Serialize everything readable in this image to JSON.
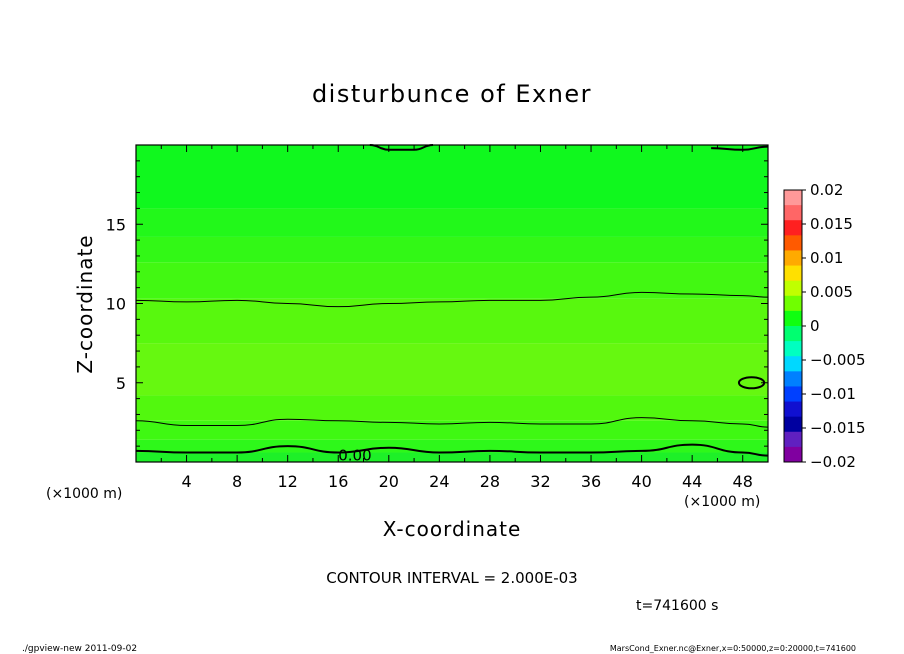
{
  "chart_data": {
    "type": "heatmap",
    "title": "disturbunce of Exner",
    "xlabel": "X-coordinate",
    "ylabel": "Z-coordinate",
    "x_unit": "(×1000 m)",
    "y_unit": "(×1000 m)",
    "xlim": [
      0,
      50
    ],
    "ylim": [
      0,
      20
    ],
    "x_ticks": [
      4,
      8,
      12,
      16,
      20,
      24,
      28,
      32,
      36,
      40,
      44,
      48
    ],
    "y_ticks": [
      5,
      10,
      15
    ],
    "contour_interval_text": "CONTOUR INTERVAL = 2.000E-03",
    "time_text": "t=741600 s",
    "contour_label": "0.00",
    "bands": [
      {
        "z0": 0.0,
        "z1": 0.6,
        "color": "#1ef028"
      },
      {
        "z0": 0.6,
        "z1": 1.4,
        "color": "#2ef81a"
      },
      {
        "z0": 1.4,
        "z1": 2.6,
        "color": "#3ff812"
      },
      {
        "z0": 2.6,
        "z1": 4.2,
        "color": "#52f80e"
      },
      {
        "z0": 4.2,
        "z1": 7.5,
        "color": "#66f810"
      },
      {
        "z0": 7.5,
        "z1": 10.3,
        "color": "#58f80e"
      },
      {
        "z0": 10.3,
        "z1": 12.6,
        "color": "#42f812"
      },
      {
        "z0": 12.6,
        "z1": 14.2,
        "color": "#32f816"
      },
      {
        "z0": 14.2,
        "z1": 16.0,
        "color": "#22f81a"
      },
      {
        "z0": 16.0,
        "z1": 20.0,
        "color": "#10f81e"
      }
    ],
    "contours": [
      {
        "name": "0.00",
        "x": [
          0,
          4,
          8,
          12,
          16,
          20,
          24,
          28,
          32,
          36,
          40,
          44,
          48,
          50
        ],
        "z": [
          0.7,
          0.6,
          0.6,
          1.0,
          0.6,
          0.9,
          0.6,
          0.7,
          0.6,
          0.6,
          0.7,
          1.1,
          0.6,
          0.4
        ]
      },
      {
        "name": "c2",
        "x": [
          0,
          4,
          8,
          12,
          16,
          20,
          24,
          28,
          32,
          36,
          40,
          44,
          48,
          50
        ],
        "z": [
          2.6,
          2.3,
          2.3,
          2.7,
          2.6,
          2.5,
          2.4,
          2.5,
          2.4,
          2.4,
          2.8,
          2.6,
          2.4,
          2.2
        ]
      },
      {
        "name": "c3",
        "x": [
          0,
          4,
          8,
          12,
          16,
          20,
          24,
          28,
          32,
          36,
          40,
          44,
          48,
          50
        ],
        "z": [
          10.2,
          10.1,
          10.2,
          10.0,
          9.8,
          10.0,
          10.1,
          10.2,
          10.2,
          10.4,
          10.7,
          10.6,
          10.5,
          10.4
        ]
      }
    ],
    "top_contour": {
      "x": [
        18.5,
        20,
        22,
        23.5
      ],
      "z": [
        20,
        19.7,
        19.7,
        20
      ]
    },
    "top_contour2": {
      "x": [
        45.5,
        48,
        50
      ],
      "z": [
        19.8,
        19.7,
        19.9
      ]
    },
    "loop": {
      "x": 48.7,
      "z": 5.0,
      "rx": 1.0,
      "rz": 0.35
    },
    "colorbar": {
      "ticks": [
        "0.02",
        "0.015",
        "0.01",
        "0.005",
        "0",
        "−0.005",
        "−0.01",
        "−0.015",
        "−0.02"
      ],
      "colors": [
        "#ff9999",
        "#ff6666",
        "#ff2020",
        "#ff5a00",
        "#ffaa00",
        "#ffe000",
        "#c0ff00",
        "#70ff00",
        "#10ff10",
        "#00ff70",
        "#00ffc0",
        "#00d8ff",
        "#0080ff",
        "#0040ff",
        "#1010d0",
        "#0000a0",
        "#6020c0",
        "#8000a0"
      ]
    }
  },
  "footer": {
    "left": "./gpview-new  2011-09-02",
    "right": "MarsCond_Exner.nc@Exner,x=0:50000,z=0:20000,t=741600"
  }
}
